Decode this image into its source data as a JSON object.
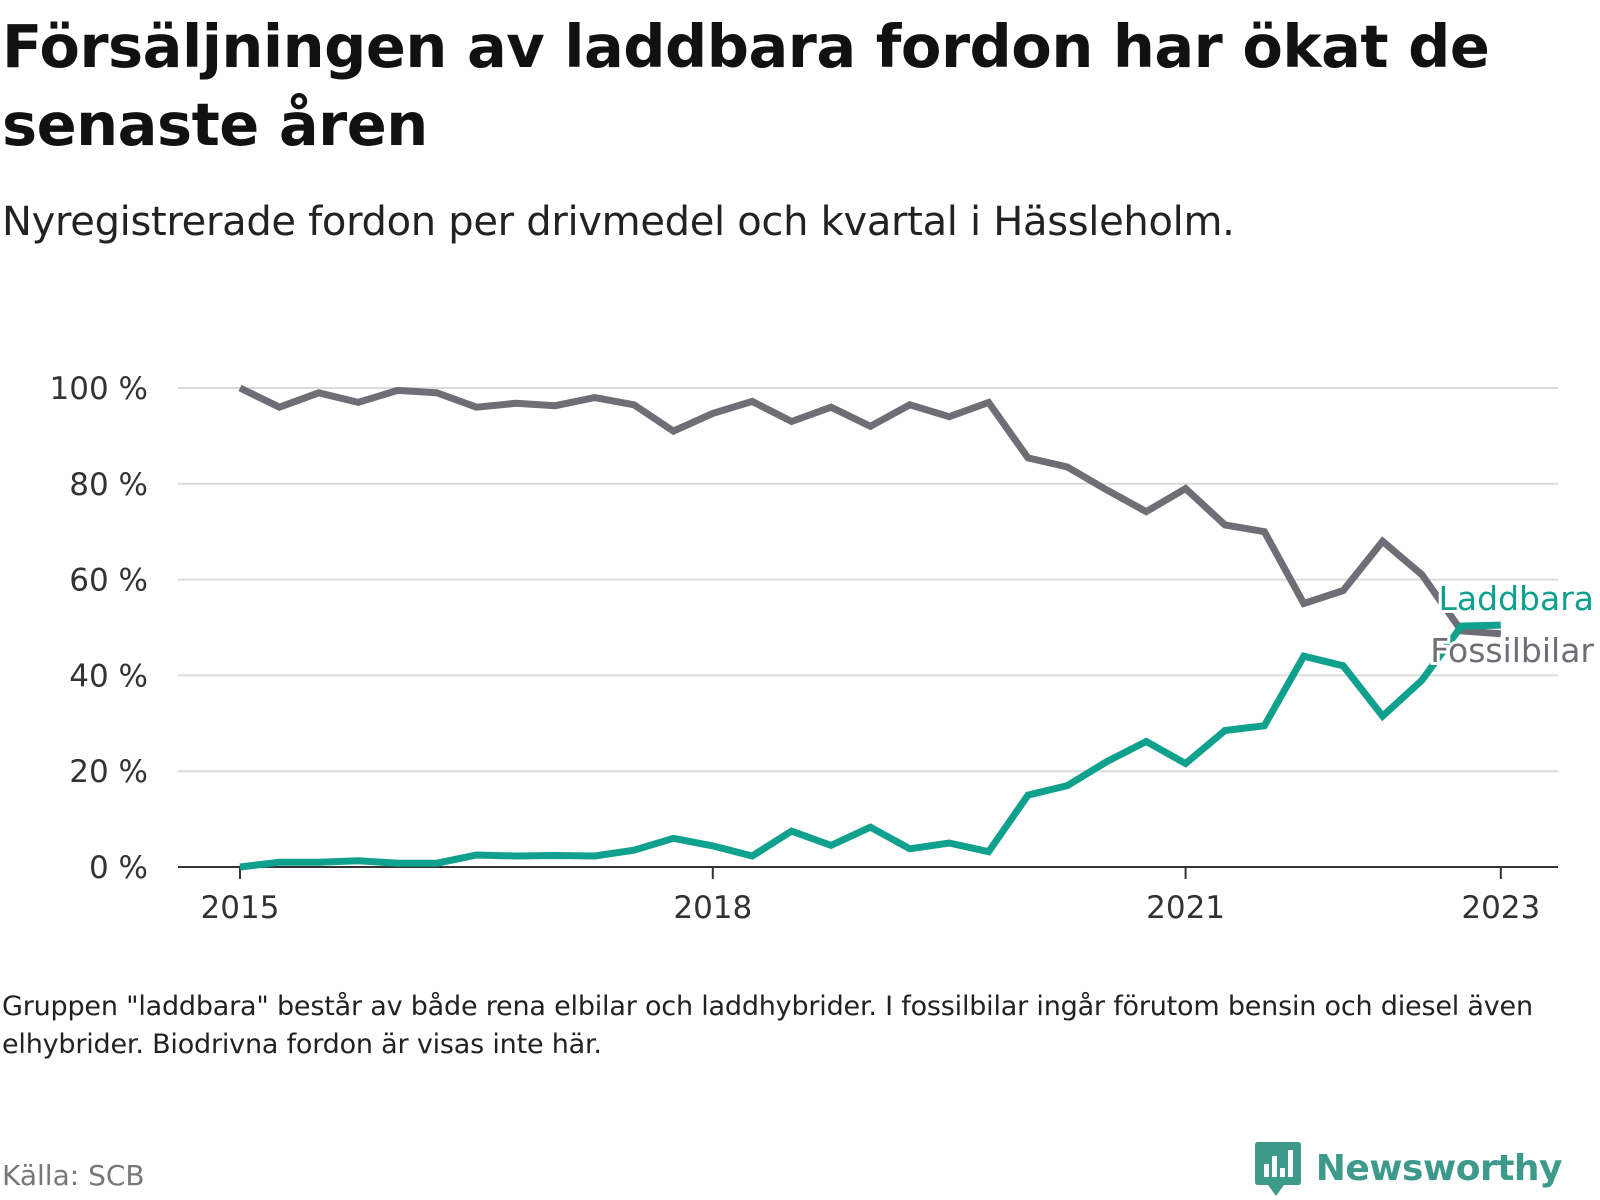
{
  "title": "Försäljningen av laddbara fordon har ökat de senaste åren",
  "subtitle": "Nyregistrerade fordon per drivmedel och kvartal i Hässleholm.",
  "note": "Gruppen \"laddbara\" består av både rena elbilar och laddhybrider. I fossilbilar ingår förutom bensin och diesel även elhybrider. Biodrivna fordon är visas inte här.",
  "source": "Källa: SCB",
  "brand": {
    "name": "Newsworthy",
    "icon": "bar-chart-speech-bubble-icon",
    "color": "#3d9a8b"
  },
  "chart_data": {
    "type": "line",
    "x_unit": "quarter",
    "x": [
      "2015-Q1",
      "2015-Q2",
      "2015-Q3",
      "2015-Q4",
      "2016-Q1",
      "2016-Q2",
      "2016-Q3",
      "2016-Q4",
      "2017-Q1",
      "2017-Q2",
      "2017-Q3",
      "2017-Q4",
      "2018-Q1",
      "2018-Q2",
      "2018-Q3",
      "2018-Q4",
      "2019-Q1",
      "2019-Q2",
      "2019-Q3",
      "2019-Q4",
      "2020-Q1",
      "2020-Q2",
      "2020-Q3",
      "2020-Q4",
      "2021-Q1",
      "2021-Q2",
      "2021-Q3",
      "2021-Q4",
      "2022-Q1",
      "2022-Q2",
      "2022-Q3",
      "2022-Q4",
      "2023-Q1"
    ],
    "x_ticks": [
      "2015",
      "2018",
      "2021",
      "2023"
    ],
    "x_tick_quarters": [
      "2015-Q1",
      "2018-Q1",
      "2021-Q1",
      "2023-Q1"
    ],
    "y_ticks": [
      0,
      20,
      40,
      60,
      80,
      100
    ],
    "y_tick_labels": [
      "0 %",
      "20 %",
      "40 %",
      "60 %",
      "80 %",
      "100 %"
    ],
    "ylim": [
      0,
      100
    ],
    "grid": true,
    "legend": "direct labels at line ends",
    "series": [
      {
        "name": "Fossilbilar",
        "color": "#6f6e76",
        "values": [
          100,
          96,
          99,
          97,
          99.5,
          99,
          96,
          96.8,
          96.3,
          98,
          96.5,
          91,
          94.7,
          97.2,
          93,
          96,
          92,
          96.5,
          94,
          97,
          85.4,
          83.5,
          78.7,
          74.2,
          79,
          71.4,
          70,
          55,
          57.7,
          68,
          61,
          49.3,
          48.7
        ]
      },
      {
        "name": "Laddbara",
        "color": "#0fa08e",
        "values": [
          0,
          1,
          1,
          1.3,
          0.8,
          0.8,
          2.5,
          2.3,
          2.4,
          2.3,
          3.5,
          6,
          4.4,
          2.3,
          7.5,
          4.5,
          8.3,
          3.8,
          5,
          3.2,
          15,
          17,
          22,
          26.2,
          21.6,
          28.5,
          29.5,
          44,
          42,
          31.5,
          39,
          50.3,
          50.5
        ]
      }
    ]
  }
}
